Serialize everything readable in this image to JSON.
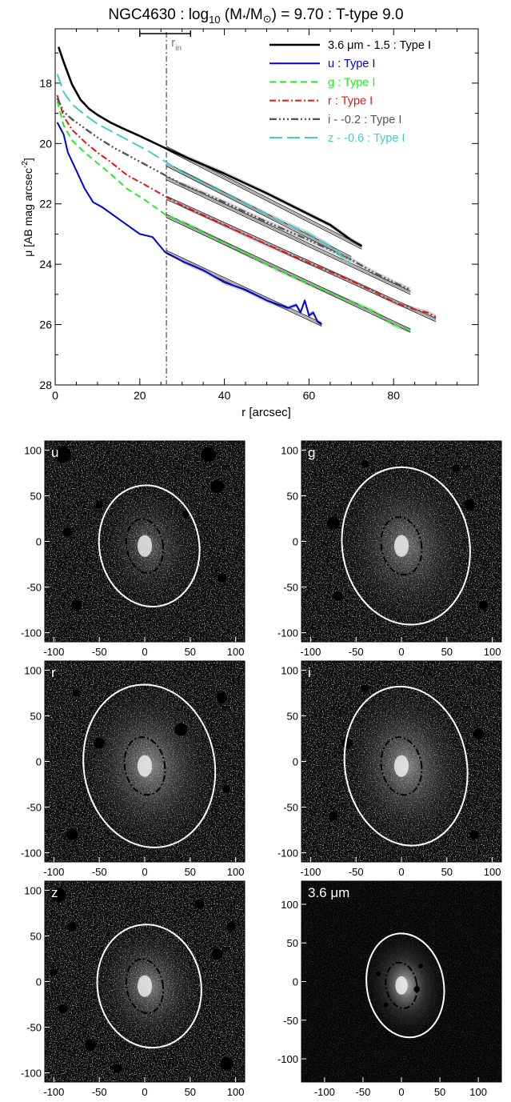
{
  "title": "NGC4630 : log10 (M*/M⊙) = 9.70 : T-type 9.0",
  "title_parts": {
    "a": "NGC4630 : log",
    "sub": "10",
    "b": " (M",
    "star": "*",
    "c": "/M",
    "sun": "⊙",
    "d": ") = 9.70 : T-type 9.0"
  },
  "colors": {
    "3.6": "#000000",
    "u": "#0000dd",
    "g": "#22ee22",
    "r": "#ee1111",
    "i": "#555555",
    "z": "#44cccc",
    "fit": "#777777",
    "rin": "#777777"
  },
  "chart_data": {
    "type": "line",
    "xlabel": "r [arcsec]",
    "ylabel": "μ [AB mag arcsec-2]",
    "ylabel_parts": {
      "a": "μ [AB mag arcsec",
      "sup": "-2",
      "b": "]"
    },
    "xlim": [
      0,
      100
    ],
    "ylim": [
      28,
      16.2
    ],
    "xticks": [
      0,
      20,
      40,
      60,
      80
    ],
    "yticks": [
      18,
      20,
      22,
      24,
      26,
      28
    ],
    "rin": {
      "label": "r",
      "sub": "in",
      "x": 26.3,
      "err": [
        20,
        32
      ]
    },
    "series": [
      {
        "key": "3.6",
        "name": "3.6 μm - 1.5 : Type I",
        "dash": "",
        "width": 2.6,
        "x": [
          0.8,
          2,
          4,
          6,
          8,
          10,
          13,
          16,
          20,
          26,
          30,
          40,
          50,
          60,
          65,
          70,
          72.5
        ],
        "y": [
          16.8,
          17.3,
          18.05,
          18.55,
          18.85,
          19.05,
          19.3,
          19.5,
          19.75,
          20.15,
          20.4,
          21.0,
          21.65,
          22.35,
          22.7,
          23.2,
          23.4
        ],
        "fit": {
          "x": [
            26.3,
            72.5
          ],
          "y": [
            20.15,
            23.45
          ]
        }
      },
      {
        "key": "u",
        "name": "u : Type I",
        "dash": "",
        "width": 2,
        "x": [
          0.5,
          2,
          3,
          5,
          7,
          9,
          11,
          14,
          17,
          20,
          23,
          26,
          30,
          35,
          40,
          45,
          50,
          53,
          55,
          57,
          58,
          59,
          60,
          61,
          62,
          63
        ],
        "y": [
          19.3,
          19.7,
          20.3,
          20.9,
          21.5,
          21.95,
          22.1,
          22.4,
          22.7,
          23.0,
          23.1,
          23.6,
          23.9,
          24.2,
          24.6,
          24.85,
          25.2,
          25.35,
          25.45,
          25.35,
          25.6,
          25.2,
          25.7,
          25.6,
          25.9,
          26.0
        ],
        "fit": {
          "x": [
            26.3,
            63
          ],
          "y": [
            23.6,
            26.0
          ]
        }
      },
      {
        "key": "g",
        "name": "g : Type I",
        "dash": "8,5",
        "width": 2,
        "x": [
          0.5,
          2,
          4,
          7,
          10,
          13,
          17,
          21,
          26,
          30,
          40,
          50,
          60,
          70,
          75,
          80,
          84
        ],
        "y": [
          18.6,
          19.4,
          19.9,
          20.3,
          20.65,
          21.0,
          21.5,
          21.85,
          22.35,
          22.6,
          23.3,
          24.0,
          24.65,
          25.25,
          25.55,
          26.0,
          26.2
        ],
        "fit": {
          "x": [
            26.3,
            84
          ],
          "y": [
            22.4,
            26.2
          ]
        }
      },
      {
        "key": "r",
        "name": "r : Type I",
        "dash": "8,3,2,3",
        "width": 2,
        "x": [
          0.5,
          2,
          4,
          7,
          10,
          13,
          17,
          21,
          26,
          30,
          40,
          50,
          60,
          70,
          76,
          80,
          85,
          88,
          90
        ],
        "y": [
          18.4,
          19.1,
          19.55,
          19.95,
          20.3,
          20.6,
          21.05,
          21.35,
          21.75,
          22.05,
          22.7,
          23.35,
          23.95,
          24.55,
          24.95,
          25.25,
          25.5,
          25.6,
          25.75
        ],
        "fit": {
          "x": [
            26.3,
            90
          ],
          "y": [
            21.8,
            25.85
          ]
        }
      },
      {
        "key": "i",
        "name": "i - -0.2 : Type I",
        "dash": "9,3,2,3,2,3,2,3",
        "width": 2.4,
        "x": [
          0.5,
          2,
          4,
          7,
          10,
          14,
          18,
          22,
          26,
          30,
          40,
          50,
          60,
          70,
          75,
          80,
          84
        ],
        "y": [
          18.5,
          18.95,
          19.2,
          19.5,
          19.8,
          20.15,
          20.45,
          20.75,
          21.05,
          21.35,
          21.95,
          22.6,
          23.2,
          23.85,
          24.25,
          24.6,
          24.85
        ],
        "fit": {
          "x": [
            26.3,
            84
          ],
          "y": [
            21.15,
            24.95
          ]
        }
      },
      {
        "key": "z",
        "name": "z - -0.6 : Type I",
        "dash": "16,6",
        "width": 2,
        "x": [
          0.5,
          2,
          4,
          7,
          10,
          14,
          18,
          22,
          26,
          30,
          40,
          50,
          60,
          65,
          70
        ],
        "y": [
          17.7,
          18.3,
          18.7,
          19.05,
          19.35,
          19.65,
          19.95,
          20.25,
          20.6,
          20.95,
          21.65,
          22.35,
          23.0,
          23.4,
          24.0
        ],
        "fit": {
          "x": [
            26.3,
            70
          ],
          "y": [
            20.7,
            23.8
          ]
        }
      }
    ]
  },
  "panels": [
    {
      "label": "u",
      "xticks": [
        "-100",
        "-50",
        "0",
        "50",
        "100"
      ],
      "yticks": [
        "100",
        "50",
        "0",
        "-50",
        "-100"
      ]
    },
    {
      "label": "g",
      "xticks": [
        "-100",
        "-50",
        "0",
        "50",
        "100"
      ],
      "yticks": [
        "100",
        "50",
        "0",
        "-50",
        "-100"
      ]
    },
    {
      "label": "r",
      "xticks": [
        "-100",
        "-50",
        "0",
        "50",
        "100"
      ],
      "yticks": [
        "100",
        "50",
        "0",
        "-50",
        "-100"
      ]
    },
    {
      "label": "i",
      "xticks": [
        "-100",
        "-50",
        "0",
        "50",
        "100"
      ],
      "yticks": [
        "100",
        "50",
        "0",
        "-50",
        "-100"
      ]
    },
    {
      "label": "z",
      "xticks": [
        "-100",
        "-50",
        "0",
        "50",
        "100"
      ],
      "yticks": [
        "100",
        "50",
        "0",
        "-50",
        "-100"
      ]
    },
    {
      "label": "3.6 μm",
      "xticks": [
        "-100",
        "-50",
        "0",
        "50",
        "100"
      ],
      "yticks": [
        "100",
        "50",
        "0",
        "-50",
        "-100"
      ]
    }
  ]
}
